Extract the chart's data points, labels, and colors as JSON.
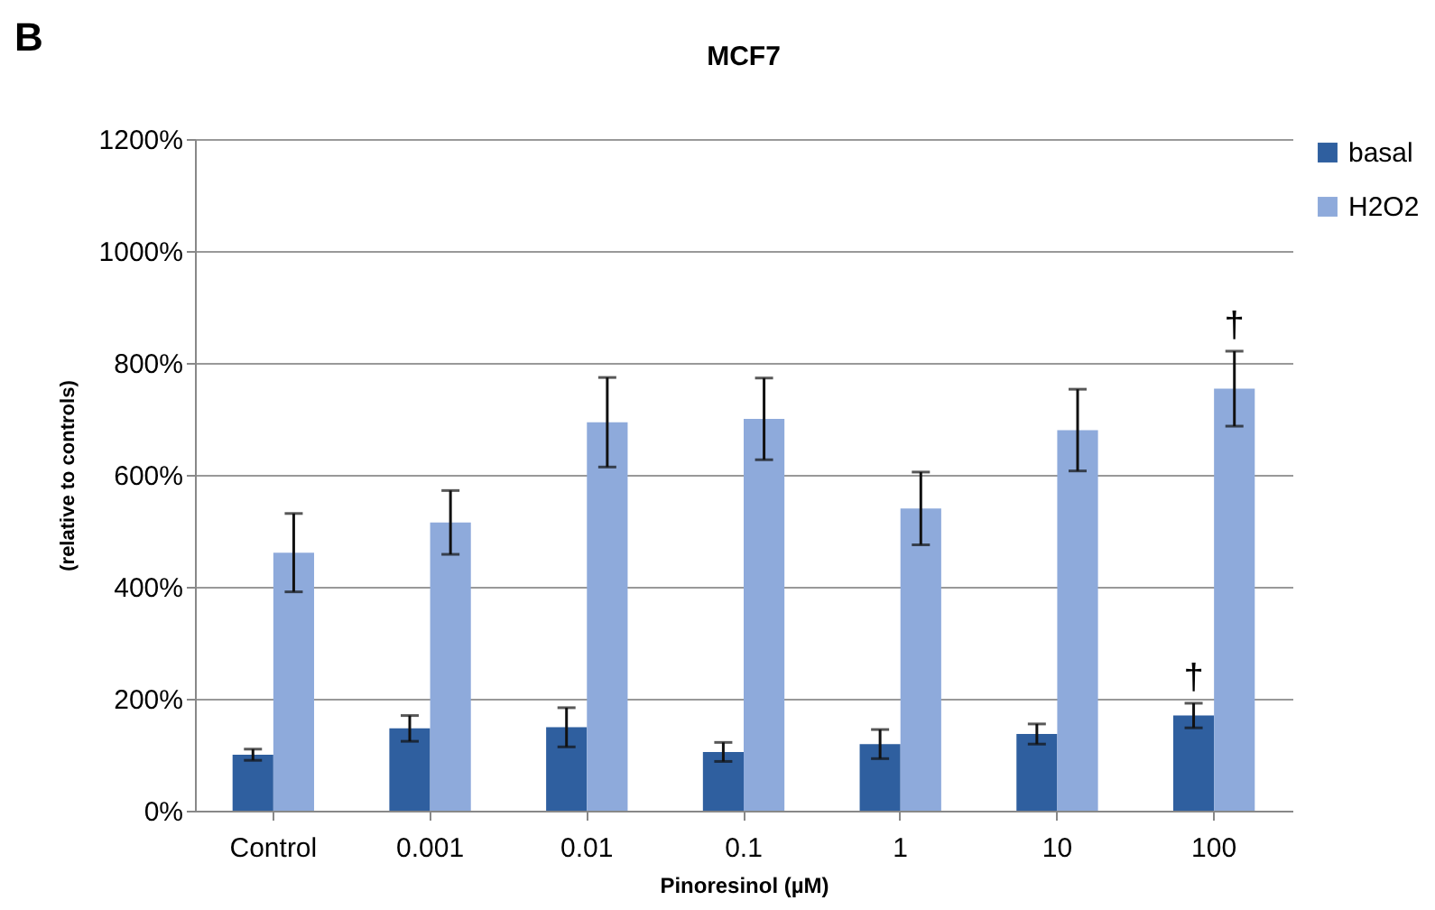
{
  "chart_data": {
    "type": "bar",
    "title": "MCF7",
    "xlabel": "Pinoresinol (µM)",
    "ylabel": "(relative to controls)",
    "categories": [
      "Control",
      "0.001",
      "0.01",
      "0.1",
      "1",
      "10",
      "100"
    ],
    "series": [
      {
        "name": "basal",
        "color": "#2f5f9f",
        "values": [
          100,
          147,
          149,
          105,
          119,
          137,
          170
        ],
        "errors": [
          10,
          23,
          35,
          17,
          26,
          18,
          22
        ]
      },
      {
        "name": "H2O2",
        "color": "#8eaadb",
        "values": [
          461,
          515,
          694,
          700,
          540,
          680,
          754
        ],
        "errors": [
          70,
          57,
          80,
          73,
          65,
          73,
          67
        ]
      }
    ],
    "ylim": [
      0,
      1200
    ],
    "yticks": [
      {
        "value": 0,
        "label": "0%"
      },
      {
        "value": 200,
        "label": "200%"
      },
      {
        "value": 400,
        "label": "400%"
      },
      {
        "value": 600,
        "label": "600%"
      },
      {
        "value": 800,
        "label": "800%"
      },
      {
        "value": 1000,
        "label": "1000%"
      },
      {
        "value": 1200,
        "label": "1200%"
      }
    ],
    "grid": "y",
    "legend": "right",
    "annotations": [
      "B",
      {
        "text": "†",
        "x": "100",
        "y": 170
      },
      {
        "text": "†",
        "x": "100",
        "y": 754
      }
    ]
  }
}
